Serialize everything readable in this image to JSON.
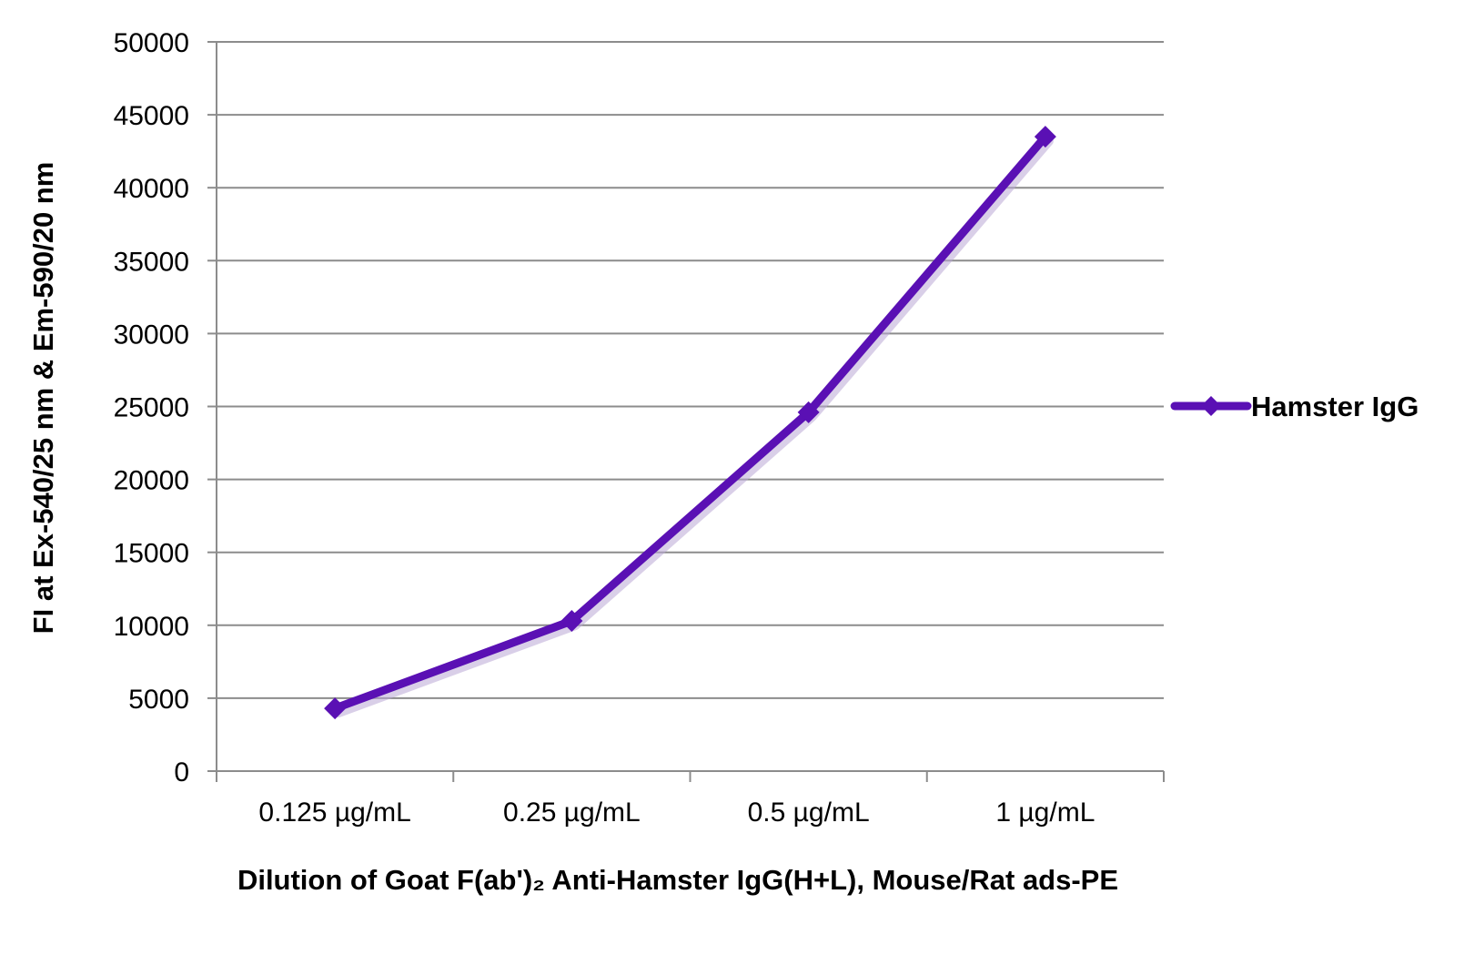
{
  "chart_data": {
    "type": "line",
    "categories": [
      "0.125 µg/mL",
      "0.25 µg/mL",
      "0.5 µg/mL",
      "1 µg/mL"
    ],
    "series": [
      {
        "name": "Hamster IgG",
        "values": [
          4300,
          10300,
          24600,
          43500
        ],
        "color": "#5a10b4",
        "marker": "diamond"
      }
    ],
    "xlabel": "Dilution of Goat F(ab')₂ Anti-Hamster IgG(H+L), Mouse/Rat ads-PE",
    "ylabel": "FI at Ex-540/25 nm & Em-590/20 nm",
    "ylim": [
      0,
      50000
    ],
    "y_ticks": [
      0,
      5000,
      10000,
      15000,
      20000,
      25000,
      30000,
      35000,
      40000,
      45000,
      50000
    ],
    "y_tick_labels": [
      "0",
      "5000",
      "10000",
      "15000",
      "20000",
      "25000",
      "30000",
      "35000",
      "40000",
      "45000",
      "50000"
    ],
    "grid": "horizontal",
    "grid_color": "#8c8c8c",
    "legend_position": "right"
  }
}
